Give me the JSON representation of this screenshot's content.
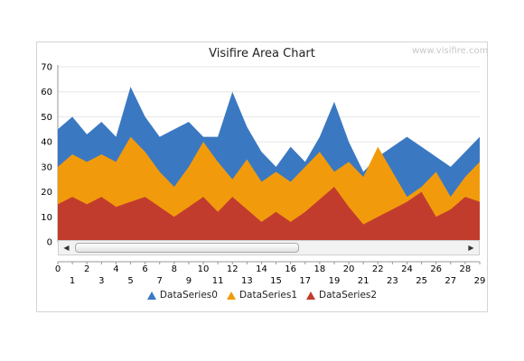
{
  "chart_data": {
    "type": "area",
    "title": "Visifire Area Chart",
    "watermark": "www.visifire.com",
    "x": [
      0,
      1,
      2,
      3,
      4,
      5,
      6,
      7,
      8,
      9,
      10,
      11,
      12,
      13,
      14,
      15,
      16,
      17,
      18,
      19,
      20,
      21,
      22,
      23,
      24,
      25,
      26,
      27,
      28,
      29
    ],
    "x_tick_labels": [
      "0",
      "1",
      "2",
      "3",
      "4",
      "5",
      "6",
      "7",
      "8",
      "9",
      "10",
      "11",
      "12",
      "13",
      "14",
      "15",
      "16",
      "17",
      "18",
      "19",
      "20",
      "21",
      "22",
      "23",
      "24",
      "25",
      "26",
      "27",
      "28",
      "29"
    ],
    "y_ticks": [
      0,
      10,
      20,
      30,
      40,
      50,
      60,
      70
    ],
    "ylim": [
      0,
      70
    ],
    "grid": true,
    "legend_position": "bottom",
    "series": [
      {
        "name": "DataSeries0",
        "color": "#3a78c2",
        "values": [
          45,
          50,
          43,
          48,
          42,
          62,
          50,
          42,
          45,
          48,
          42,
          42,
          60,
          46,
          36,
          30,
          38,
          32,
          42,
          56,
          40,
          28,
          34,
          38,
          42,
          38,
          34,
          30,
          36,
          42
        ]
      },
      {
        "name": "DataSeries1",
        "color": "#f19b0c",
        "values": [
          30,
          35,
          32,
          35,
          32,
          42,
          36,
          28,
          22,
          30,
          40,
          32,
          25,
          33,
          24,
          28,
          24,
          30,
          36,
          28,
          32,
          26,
          38,
          28,
          18,
          22,
          28,
          18,
          26,
          32
        ]
      },
      {
        "name": "DataSeries2",
        "color": "#c23c2e",
        "values": [
          15,
          18,
          15,
          18,
          14,
          16,
          18,
          14,
          10,
          14,
          18,
          12,
          18,
          13,
          8,
          12,
          8,
          12,
          17,
          22,
          14,
          7,
          10,
          13,
          16,
          20,
          10,
          13,
          18,
          16
        ]
      }
    ]
  }
}
